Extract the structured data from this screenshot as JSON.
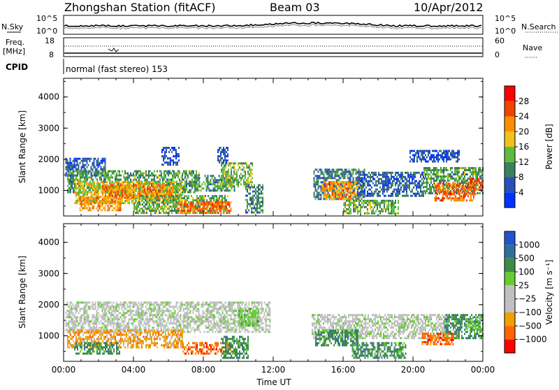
{
  "header": {
    "station": "Zhongshan Station (fitACF)",
    "beam": "Beam 03",
    "date": "10/Apr/2012"
  },
  "summary_panels": {
    "nsky_label": "N.Sky",
    "nsearch_label": "N.Search",
    "noise_ticks": [
      "10^5",
      "10^0"
    ],
    "freq_label_1": "Freq.",
    "freq_label_2": "[MHz]",
    "freq_ticks": [
      "18",
      "8"
    ],
    "nave_label": "Nave",
    "nave_ticks": [
      "60",
      "0"
    ],
    "cpid_label": "CPID",
    "cpid_text": "normal (fast stereo) 153"
  },
  "chart_data": [
    {
      "type": "heatmap",
      "parameter": "Power",
      "ylabel": "Slant Range [km]",
      "xlabel": "",
      "x_ticks": [
        "00:00",
        "04:00",
        "08:00",
        "12:00",
        "16:00",
        "20:00",
        "00:00"
      ],
      "x_range_hours": [
        0,
        24
      ],
      "y_ticks": [
        1000,
        2000,
        3000,
        4000
      ],
      "ylim": [
        180,
        4600
      ],
      "colorbar": {
        "label": "Power [dB]",
        "ticks": [
          4,
          8,
          12,
          16,
          20,
          24,
          28
        ],
        "range": [
          0,
          32
        ],
        "colors": [
          "#0033ff",
          "#2a4fb8",
          "#3d7f5c",
          "#5fba3d",
          "#f2c21a",
          "#ff8c00",
          "#ee4400",
          "#ff0000"
        ]
      },
      "regions": [
        {
          "t0": 0.1,
          "t1": 2.4,
          "r0": 1500,
          "r1": 2050,
          "value": 6
        },
        {
          "t0": 0.2,
          "t1": 7.8,
          "r0": 950,
          "r1": 1650,
          "value": 12
        },
        {
          "t0": 0.6,
          "t1": 6.8,
          "r0": 600,
          "r1": 1300,
          "value": 17
        },
        {
          "t0": 2.2,
          "t1": 6.2,
          "r0": 750,
          "r1": 1200,
          "value": 23
        },
        {
          "t0": 0.9,
          "t1": 3.3,
          "r0": 350,
          "r1": 800,
          "value": 22
        },
        {
          "t0": 4.0,
          "t1": 9.4,
          "r0": 300,
          "r1": 850,
          "value": 13
        },
        {
          "t0": 6.5,
          "t1": 9.6,
          "r0": 250,
          "r1": 650,
          "value": 24
        },
        {
          "t0": 7.5,
          "t1": 9.8,
          "r0": 1000,
          "r1": 1500,
          "value": 11
        },
        {
          "t0": 9.0,
          "t1": 10.8,
          "r0": 1100,
          "r1": 1900,
          "value": 14
        },
        {
          "t0": 10.4,
          "t1": 11.4,
          "r0": 300,
          "r1": 1200,
          "value": 10
        },
        {
          "t0": 14.3,
          "t1": 17.2,
          "r0": 700,
          "r1": 1700,
          "value": 9
        },
        {
          "t0": 14.8,
          "t1": 16.8,
          "r0": 750,
          "r1": 1300,
          "value": 21
        },
        {
          "t0": 16.8,
          "t1": 20.6,
          "r0": 800,
          "r1": 1600,
          "value": 7
        },
        {
          "t0": 16.0,
          "t1": 19.2,
          "r0": 250,
          "r1": 700,
          "value": 13
        },
        {
          "t0": 20.6,
          "t1": 24.0,
          "r0": 900,
          "r1": 1750,
          "value": 12
        },
        {
          "t0": 21.2,
          "t1": 23.6,
          "r0": 700,
          "r1": 1250,
          "value": 24
        },
        {
          "t0": 23.2,
          "t1": 24.0,
          "r0": 1000,
          "r1": 1400,
          "value": 26
        },
        {
          "t0": 5.6,
          "t1": 6.6,
          "r0": 1800,
          "r1": 2400,
          "value": 5
        },
        {
          "t0": 8.8,
          "t1": 9.4,
          "r0": 1900,
          "r1": 2400,
          "value": 6
        },
        {
          "t0": 19.8,
          "t1": 22.6,
          "r0": 1900,
          "r1": 2300,
          "value": 5
        }
      ]
    },
    {
      "type": "heatmap",
      "parameter": "Velocity",
      "ylabel": "Slant Range [km]",
      "xlabel": "Time UT",
      "x_ticks": [
        "00:00",
        "04:00",
        "08:00",
        "12:00",
        "16:00",
        "20:00",
        "00:00"
      ],
      "x_range_hours": [
        0,
        24
      ],
      "y_ticks": [
        1000,
        2000,
        3000,
        4000
      ],
      "ylim": [
        180,
        4600
      ],
      "colorbar": {
        "label": "Velocity [m s⁻¹]",
        "ticks": [
          "1000",
          "500",
          "100",
          "25",
          "−25",
          "−100",
          "−500",
          "−1000"
        ],
        "colors": [
          "#2255cc",
          "#2f6f9a",
          "#3f8a4a",
          "#66cc33",
          "#c0c0c0",
          "#c0c0c0",
          "#f0a000",
          "#ff6600",
          "#ff0000"
        ]
      },
      "regions": [
        {
          "t0": 0.1,
          "t1": 11.8,
          "r0": 1100,
          "r1": 2100,
          "class": 4
        },
        {
          "t0": 0.2,
          "t1": 6.8,
          "r0": 600,
          "r1": 1200,
          "class": 6
        },
        {
          "t0": 0.6,
          "t1": 3.2,
          "r0": 400,
          "r1": 800,
          "class": 2
        },
        {
          "t0": 6.8,
          "t1": 9.6,
          "r0": 400,
          "r1": 800,
          "class": 7
        },
        {
          "t0": 9.0,
          "t1": 10.6,
          "r0": 300,
          "r1": 1000,
          "class": 2
        },
        {
          "t0": 10.0,
          "t1": 11.2,
          "r0": 1300,
          "r1": 1900,
          "class": 3
        },
        {
          "t0": 14.2,
          "t1": 22.0,
          "r0": 900,
          "r1": 1700,
          "class": 4
        },
        {
          "t0": 14.4,
          "t1": 16.8,
          "r0": 700,
          "r1": 1200,
          "class": 2
        },
        {
          "t0": 16.5,
          "t1": 19.6,
          "r0": 300,
          "r1": 800,
          "class": 2
        },
        {
          "t0": 21.8,
          "t1": 24.0,
          "r0": 900,
          "r1": 1700,
          "class": 2
        },
        {
          "t0": 20.5,
          "t1": 22.3,
          "r0": 700,
          "r1": 1100,
          "class": 7
        },
        {
          "t0": 23.0,
          "t1": 24.0,
          "r0": 1200,
          "r1": 1600,
          "class": 3
        }
      ]
    }
  ]
}
